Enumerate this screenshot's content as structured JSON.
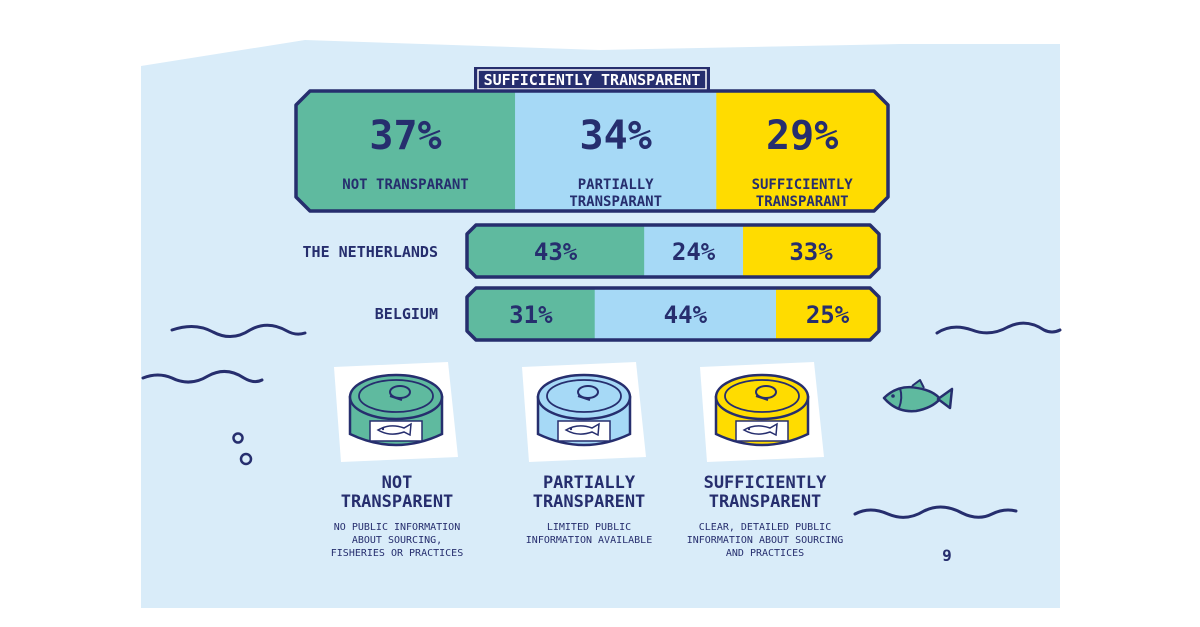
{
  "colors": {
    "not_transparent": "#5fba9f",
    "partially_transparent": "#a6d9f6",
    "sufficiently_transparent": "#ffdc00",
    "ink": "#262e6e",
    "background": "#d9ecf9"
  },
  "chart_data": {
    "type": "bar",
    "orientation": "horizontal-stacked",
    "title": "SUFFICIENTLY TRANSPARENT",
    "categories": [
      "",
      "THE NETHERLANDS",
      "BELGIUM"
    ],
    "series": [
      {
        "name": "NOT TRANSPARANT",
        "values": [
          37,
          43,
          31
        ],
        "labels": [
          "37%",
          "43%",
          "31%"
        ]
      },
      {
        "name": "PARTIALLY TRANSPARANT",
        "values": [
          34,
          24,
          44
        ],
        "labels": [
          "34%",
          "24%",
          "44%"
        ]
      },
      {
        "name": "SUFFICIENTLY TRANSPARANT",
        "values": [
          29,
          33,
          25
        ],
        "labels": [
          "29%",
          "33%",
          "25%"
        ]
      }
    ],
    "overall_labels": {
      "not_l1": "NOT TRANSPARANT",
      "partial_l1": "PARTIALLY",
      "partial_l2": "TRANSPARANT",
      "suff_l1": "SUFFICIENTLY",
      "suff_l2": "TRANSPARANT"
    },
    "xlim": [
      0,
      100
    ],
    "unit": "%"
  },
  "legend": {
    "not": {
      "icon": "green-tuna-can-icon",
      "title_l1": "NOT",
      "title_l2": "TRANSPARENT",
      "desc_l1": "NO PUBLIC INFORMATION",
      "desc_l2": "ABOUT SOURCING,",
      "desc_l3": "FISHERIES OR PRACTICES"
    },
    "partial": {
      "icon": "blue-tuna-can-icon",
      "title_l1": "PARTIALLY",
      "title_l2": "TRANSPARENT",
      "desc_l1": "LIMITED PUBLIC",
      "desc_l2": "INFORMATION AVAILABLE"
    },
    "sufficient": {
      "icon": "yellow-tuna-can-icon",
      "title_l1": "SUFFICIENTLY",
      "title_l2": "TRANSPARENT",
      "desc_l1": "CLEAR, DETAILED PUBLIC",
      "desc_l2": "INFORMATION ABOUT SOURCING",
      "desc_l3": "AND PRACTICES"
    }
  },
  "page_number": "9"
}
